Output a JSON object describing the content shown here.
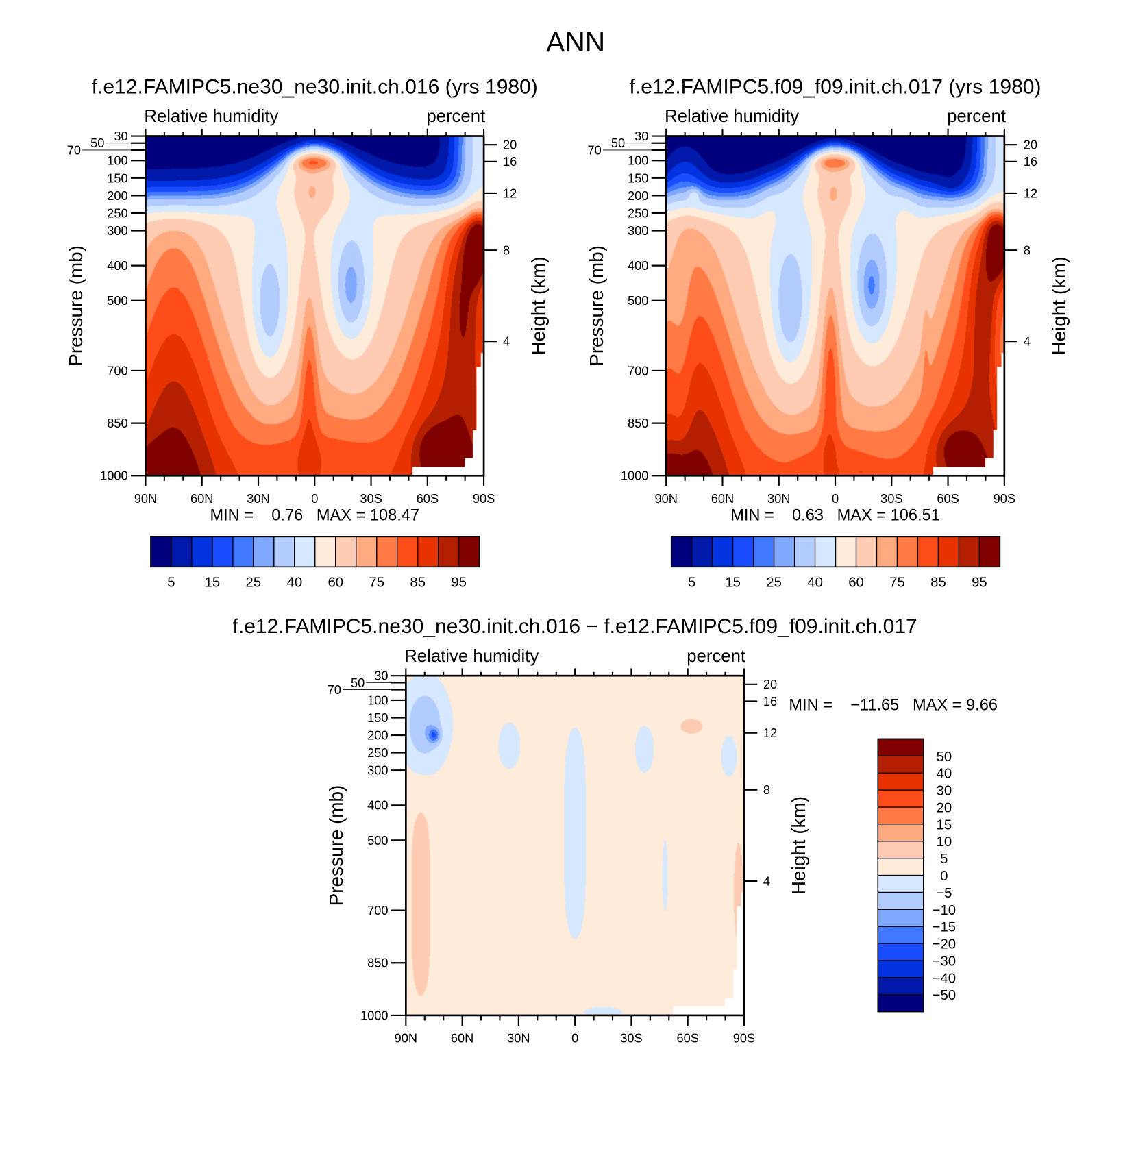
{
  "super_title": "ANN",
  "chart_data": [
    {
      "type": "heatmap",
      "style": "filled-contour",
      "title": "f.e12.FAMIPC5.ne30_ne30.init.ch.016 (yrs 1980)",
      "left_string": "Relative humidity",
      "right_string": "percent",
      "ylabel": "Pressure (mb)",
      "y2label": "Height (km)",
      "xlim": [
        "90N",
        "90S"
      ],
      "xticks": [
        "90N",
        "60N",
        "30N",
        "0",
        "30S",
        "60S",
        "90S"
      ],
      "ylim": [
        1000,
        30
      ],
      "yticks": [
        30,
        50,
        70,
        100,
        150,
        200,
        250,
        300,
        400,
        500,
        700,
        850,
        1000
      ],
      "y2ticks": [
        20,
        16,
        12,
        8,
        4
      ],
      "min_label": "MIN =",
      "min_value": "0.76",
      "max_label": "MAX =",
      "max_value": "108.47",
      "levels": [
        5,
        10,
        15,
        20,
        25,
        30,
        40,
        50,
        60,
        70,
        75,
        80,
        85,
        90,
        95
      ],
      "colorbar_labels": [
        "5",
        "15",
        "25",
        "40",
        "60",
        "75",
        "85",
        "95"
      ],
      "colorbar_orientation": "horizontal",
      "colors": [
        "#00007f",
        "#0019a8",
        "#0033e0",
        "#1a4dff",
        "#4079ff",
        "#80a8ff",
        "#b3ccff",
        "#d6e8ff",
        "#ffebd9",
        "#ffccb3",
        "#ffaa80",
        "#ff7a45",
        "#ff4d1a",
        "#e63300",
        "#b32000",
        "#800000"
      ]
    },
    {
      "type": "heatmap",
      "style": "filled-contour",
      "title": "f.e12.FAMIPC5.f09_f09.init.ch.017 (yrs 1980)",
      "left_string": "Relative humidity",
      "right_string": "percent",
      "ylabel": "Pressure (mb)",
      "y2label": "Height (km)",
      "xlim": [
        "90N",
        "90S"
      ],
      "xticks": [
        "90N",
        "60N",
        "30N",
        "0",
        "30S",
        "60S",
        "90S"
      ],
      "ylim": [
        1000,
        30
      ],
      "yticks": [
        30,
        50,
        70,
        100,
        150,
        200,
        250,
        300,
        400,
        500,
        700,
        850,
        1000
      ],
      "y2ticks": [
        20,
        16,
        12,
        8,
        4
      ],
      "min_label": "MIN =",
      "min_value": "0.63",
      "max_label": "MAX =",
      "max_value": "106.51",
      "levels": [
        5,
        10,
        15,
        20,
        25,
        30,
        40,
        50,
        60,
        70,
        75,
        80,
        85,
        90,
        95
      ],
      "colorbar_labels": [
        "5",
        "15",
        "25",
        "40",
        "60",
        "75",
        "85",
        "95"
      ],
      "colorbar_orientation": "horizontal",
      "colors": [
        "#00007f",
        "#0019a8",
        "#0033e0",
        "#1a4dff",
        "#4079ff",
        "#80a8ff",
        "#b3ccff",
        "#d6e8ff",
        "#ffebd9",
        "#ffccb3",
        "#ffaa80",
        "#ff7a45",
        "#ff4d1a",
        "#e63300",
        "#b32000",
        "#800000"
      ]
    },
    {
      "type": "heatmap",
      "style": "filled-contour",
      "title": "f.e12.FAMIPC5.ne30_ne30.init.ch.016 − f.e12.FAMIPC5.f09_f09.init.ch.017",
      "left_string": "Relative humidity",
      "right_string": "percent",
      "ylabel": "Pressure (mb)",
      "y2label": "Height (km)",
      "xlim": [
        "90N",
        "90S"
      ],
      "xticks": [
        "90N",
        "60N",
        "30N",
        "0",
        "30S",
        "60S",
        "90S"
      ],
      "ylim": [
        1000,
        30
      ],
      "yticks": [
        30,
        50,
        70,
        100,
        150,
        200,
        250,
        300,
        400,
        500,
        700,
        850,
        1000
      ],
      "y2ticks": [
        20,
        16,
        12,
        8,
        4
      ],
      "min_label": "MIN =",
      "min_value": "−11.65",
      "max_label": "MAX =",
      "max_value": "9.66",
      "levels": [
        -50,
        -40,
        -30,
        -20,
        -15,
        -10,
        -5,
        0,
        5,
        10,
        15,
        20,
        30,
        40,
        50
      ],
      "colorbar_labels": [
        "−50",
        "−40",
        "−30",
        "−20",
        "−15",
        "−10",
        "−5",
        "0",
        "5",
        "10",
        "15",
        "20",
        "30",
        "40",
        "50"
      ],
      "colorbar_orientation": "vertical",
      "colors": [
        "#00007f",
        "#0019a8",
        "#0033e0",
        "#1a4dff",
        "#4079ff",
        "#80a8ff",
        "#b3ccff",
        "#d6e8ff",
        "#ffebd9",
        "#ffccb3",
        "#ffaa80",
        "#ff7a45",
        "#ff4d1a",
        "#e63300",
        "#b32000",
        "#800000"
      ]
    }
  ]
}
